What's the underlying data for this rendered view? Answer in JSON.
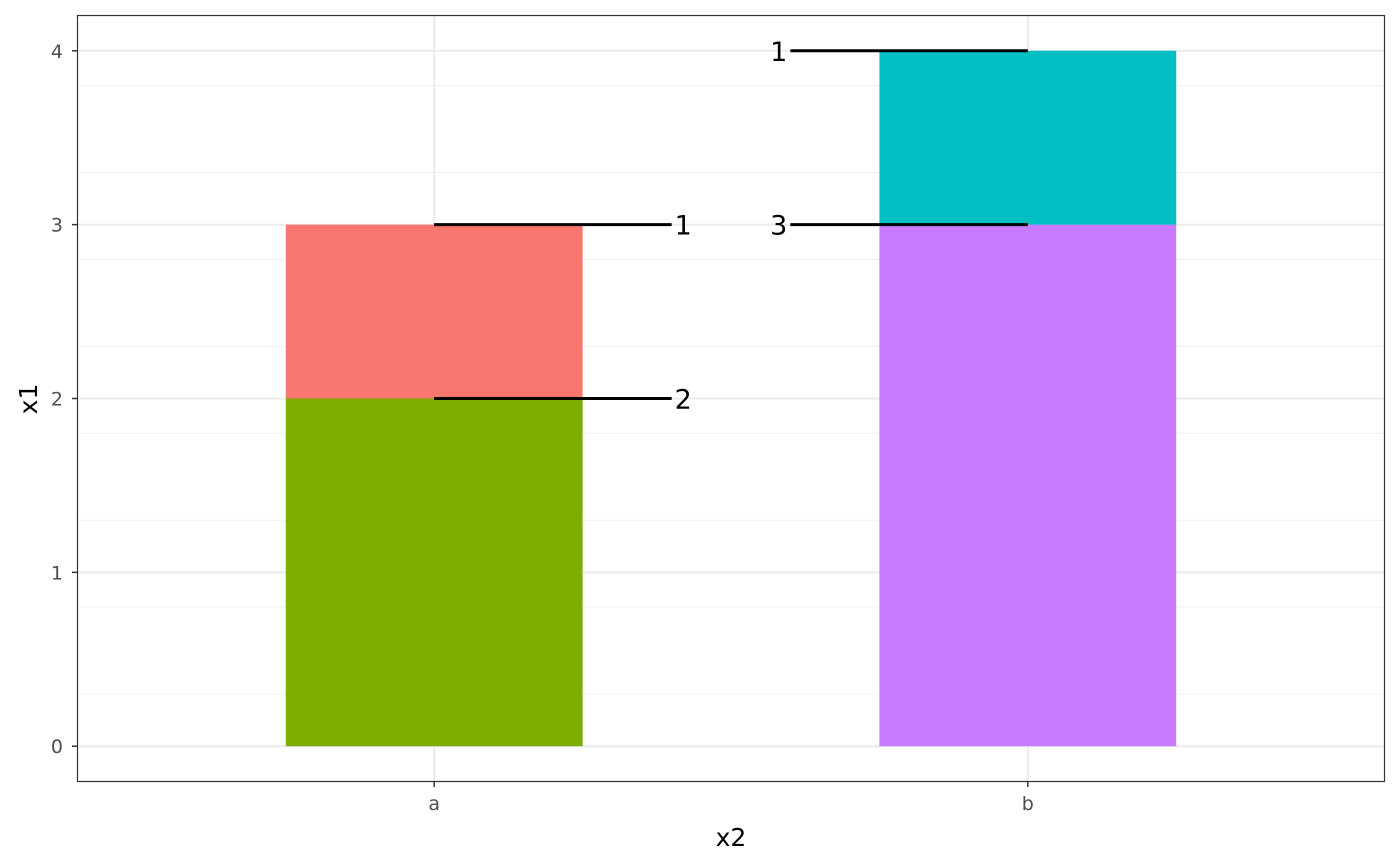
{
  "chart_data": {
    "type": "bar",
    "stacked": true,
    "xlabel": "x2",
    "ylabel": "x1",
    "ylim": [
      -0.2,
      4.2
    ],
    "yticks": [
      "0",
      "1",
      "2",
      "3",
      "4"
    ],
    "categories": [
      "a",
      "b"
    ],
    "grid": true,
    "segments": [
      {
        "category": "a",
        "ymin": 0,
        "ymax": 2,
        "color": "#7CAE00"
      },
      {
        "category": "a",
        "ymin": 2,
        "ymax": 3,
        "color": "#F8766D"
      },
      {
        "category": "b",
        "ymin": 0,
        "ymax": 3,
        "color": "#C77CFF"
      },
      {
        "category": "b",
        "ymin": 3,
        "ymax": 4,
        "color": "#00BFC4"
      }
    ],
    "annotations": [
      {
        "category": "a",
        "y": 3,
        "text": "1",
        "side": "right"
      },
      {
        "category": "a",
        "y": 2,
        "text": "2",
        "side": "right"
      },
      {
        "category": "b",
        "y": 4,
        "text": "1",
        "side": "left"
      },
      {
        "category": "b",
        "y": 3,
        "text": "3",
        "side": "left"
      }
    ]
  }
}
